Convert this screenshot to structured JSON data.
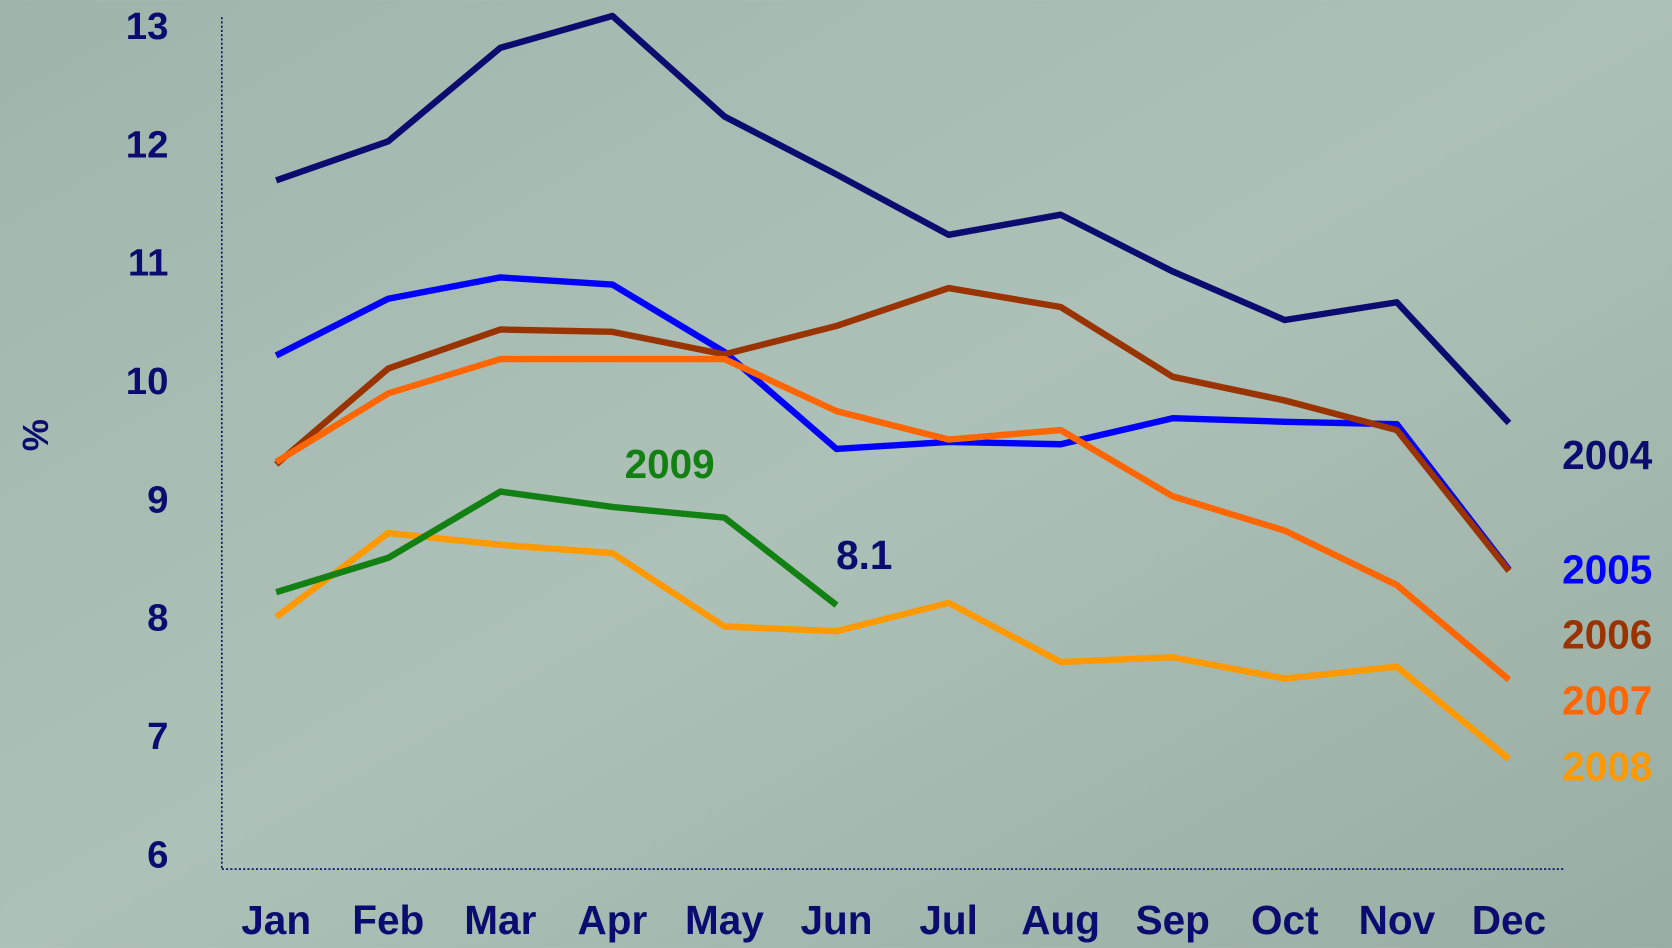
{
  "chart_data": {
    "type": "line",
    "y_label": "%",
    "categories": [
      "Jan",
      "Feb",
      "Mar",
      "Apr",
      "May",
      "Jun",
      "Jul",
      "Aug",
      "Sep",
      "Oct",
      "Nov",
      "Dec"
    ],
    "ylim": [
      5.9,
      13.1
    ],
    "yticks": [
      6,
      7,
      8,
      9,
      10,
      11,
      12,
      13
    ],
    "grid": false,
    "series": [
      {
        "name": "2004",
        "color": "#0c0c70",
        "values": [
          11.72,
          12.05,
          12.84,
          13.11,
          12.26,
          11.77,
          11.26,
          11.43,
          10.95,
          10.54,
          10.69,
          9.67
        ]
      },
      {
        "name": "2005",
        "color": "#0000ff",
        "values": [
          10.24,
          10.72,
          10.9,
          10.84,
          10.27,
          9.45,
          9.51,
          9.49,
          9.71,
          9.68,
          9.66,
          8.43
        ]
      },
      {
        "name": "2006",
        "color": "#993300",
        "values": [
          9.32,
          10.13,
          10.46,
          10.44,
          10.25,
          10.49,
          10.81,
          10.65,
          10.06,
          9.86,
          9.61,
          8.42
        ]
      },
      {
        "name": "2007",
        "color": "#ff6600",
        "values": [
          9.34,
          9.92,
          10.21,
          10.21,
          10.21,
          9.77,
          9.53,
          9.61,
          9.05,
          8.76,
          8.3,
          7.5
        ]
      },
      {
        "name": "2008",
        "color": "#ff9900",
        "values": [
          8.03,
          8.74,
          8.64,
          8.57,
          7.95,
          7.91,
          8.15,
          7.65,
          7.69,
          7.51,
          7.61,
          6.83
        ]
      },
      {
        "name": "2009",
        "color": "#138013",
        "values": [
          8.24,
          8.53,
          9.09,
          8.96,
          8.87,
          8.13,
          null,
          null,
          null,
          null,
          null,
          null
        ],
        "value_labels": [
          null,
          null,
          null,
          null,
          null,
          "8.1",
          null,
          null,
          null,
          null,
          null,
          null
        ]
      }
    ]
  }
}
